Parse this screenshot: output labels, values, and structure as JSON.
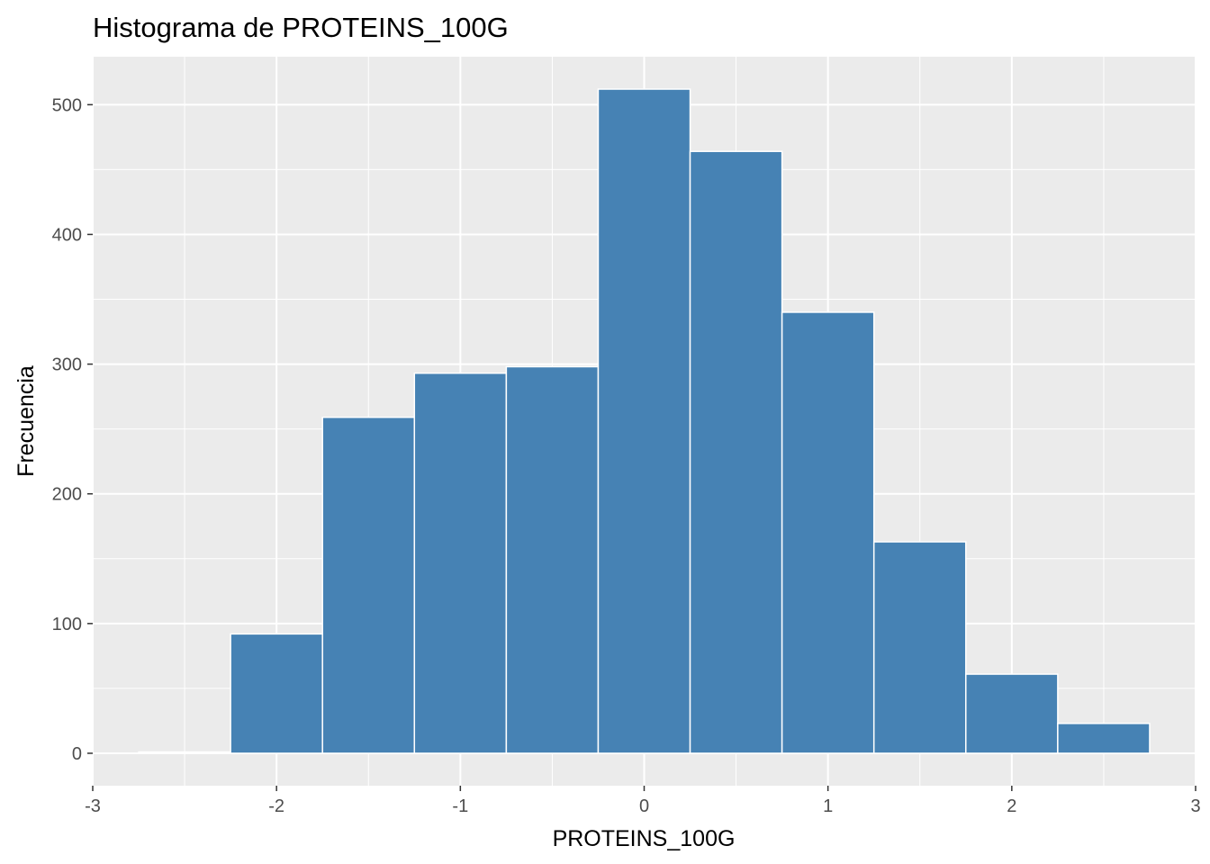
{
  "chart_data": {
    "type": "bar",
    "title": "Histograma de PROTEINS_100G",
    "xlabel": "PROTEINS_100G",
    "ylabel": "Frecuencia",
    "bin_width": 0.5,
    "bins": [
      {
        "x_start": -2.75,
        "x_end": -2.25,
        "count": 1
      },
      {
        "x_start": -2.25,
        "x_end": -1.75,
        "count": 92
      },
      {
        "x_start": -1.75,
        "x_end": -1.25,
        "count": 259
      },
      {
        "x_start": -1.25,
        "x_end": -0.75,
        "count": 293
      },
      {
        "x_start": -0.75,
        "x_end": -0.25,
        "count": 298
      },
      {
        "x_start": -0.25,
        "x_end": 0.25,
        "count": 512
      },
      {
        "x_start": 0.25,
        "x_end": 0.75,
        "count": 464
      },
      {
        "x_start": 0.75,
        "x_end": 1.25,
        "count": 340
      },
      {
        "x_start": 1.25,
        "x_end": 1.75,
        "count": 163
      },
      {
        "x_start": 1.75,
        "x_end": 2.25,
        "count": 61
      },
      {
        "x_start": 2.25,
        "x_end": 2.75,
        "count": 23
      }
    ],
    "xlim": [
      -3.0,
      3.0
    ],
    "ylim": [
      -25,
      537
    ],
    "x_ticks": [
      -3,
      -2,
      -1,
      0,
      1,
      2,
      3
    ],
    "x_tick_labels": [
      "-3",
      "-2",
      "-1",
      "0",
      "1",
      "2",
      "3"
    ],
    "y_ticks": [
      0,
      100,
      200,
      300,
      400,
      500
    ],
    "y_tick_labels": [
      "0",
      "100",
      "200",
      "300",
      "400",
      "500"
    ],
    "grid": true,
    "colors": {
      "bar_fill": "#4682B4",
      "bar_outline": "#ffffff",
      "panel_background": "#EBEBEB",
      "grid_line": "#ffffff",
      "tick_text": "#4d4d4d",
      "tick_mark": "#333333"
    }
  }
}
